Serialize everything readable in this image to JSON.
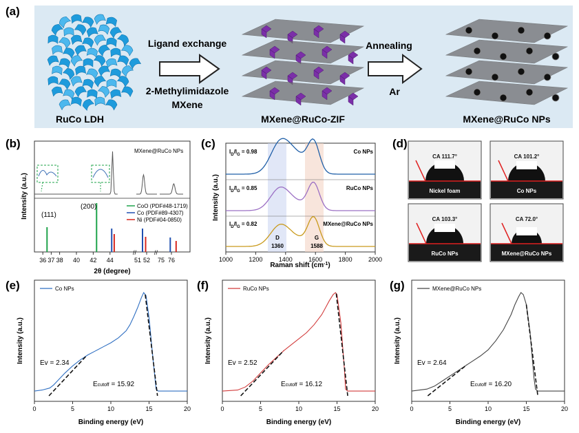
{
  "panel_a": {
    "label": "(a)",
    "left_caption": "RuCo LDH",
    "arrow1_top": "Ligand exchange",
    "arrow1_bottom_1": "2-Methylimidazole",
    "arrow1_bottom_2": "MXene",
    "mid_caption": "MXene@RuCo-ZIF",
    "arrow2_top": "Annealing",
    "arrow2_bottom": "Ar",
    "right_caption": "MXene@RuCo NPs",
    "colors": {
      "ldh": "#1e9bdc",
      "zif": "#7b2fa8",
      "sheet": "#6f6f72",
      "band": "#dbe9f3"
    }
  },
  "panel_b": {
    "label": "(b)",
    "ylabel": "Intensity (a.u.)",
    "xlabel": "2θ (degree)",
    "sample_label": "MXene@RuCo NPs",
    "peak_labels": [
      "(111)",
      "(200)"
    ],
    "legend": [
      {
        "name": "CoO (PDF#48-1719)",
        "color": "#1ea34a"
      },
      {
        "name": "Co   (PDF#89-4307)",
        "color": "#1f4fb0"
      },
      {
        "name": "Ni   (PDF#04-0850)",
        "color": "#d7261e"
      }
    ],
    "xticks": [
      "36",
      "37",
      "38",
      "40",
      "42",
      "44",
      "52",
      "76"
    ],
    "xticks2": [
      "51",
      "75"
    ]
  },
  "panel_c": {
    "label": "(c)",
    "ylabel": "Intensity (a.u.)",
    "xlabel": "Raman shift (cm",
    "xlabel_sup": "-1",
    "xlabel_close": ")",
    "xticks": [
      "1000",
      "1200",
      "1400",
      "1600",
      "1800",
      "2000"
    ],
    "series": [
      {
        "name": "Co NPs",
        "ratio": "0.98",
        "color": "#1f5fa8"
      },
      {
        "name": "RuCo NPs",
        "ratio": "0.85",
        "color": "#9b6fc4"
      },
      {
        "name": "MXene@RuCo NPs",
        "ratio": "0.82",
        "color": "#c99a1c"
      }
    ],
    "ratio_prefix": "I",
    "ratio_sub_d": "D",
    "ratio_mid": "/I",
    "ratio_sub_g": "G",
    "ratio_eq": " = ",
    "band_d": {
      "name": "D",
      "pos": "1360"
    },
    "band_g": {
      "name": "G",
      "pos": "1588"
    }
  },
  "panel_d": {
    "label": "(d)",
    "items": [
      {
        "name": "Nickel foam",
        "angle": "CA 111.7°"
      },
      {
        "name": "Co NPs",
        "angle": "CA 101.2°"
      },
      {
        "name": "RuCo NPs",
        "angle": "CA 103.3°"
      },
      {
        "name": "MXene@RuCo NPs",
        "angle": "CA 72.0°"
      }
    ]
  },
  "panel_e": {
    "label": "(e)",
    "legend": "Co NPs",
    "color": "#2f6fc2",
    "ev": "Ev = 2.34",
    "cutoff_prefix": "E",
    "cutoff_sub": "cutoff",
    "cutoff_val": " = 15.92"
  },
  "panel_f": {
    "label": "(f)",
    "legend": "RuCo NPs",
    "color": "#d23b3b",
    "ev": "Ev = 2.52",
    "cutoff_prefix": "E",
    "cutoff_sub": "cutoff",
    "cutoff_val": " = 16.12"
  },
  "panel_g": {
    "label": "(g)",
    "legend": "MXene@RuCo NPs",
    "color": "#444444",
    "ev": "Ev = 2.64",
    "cutoff_prefix": "E",
    "cutoff_sub": "cutoff",
    "cutoff_val": " = 16.20"
  },
  "ups_common": {
    "ylabel": "Intensity (a.u.)",
    "xlabel": "Binding energy (eV)",
    "xticks": [
      "0",
      "5",
      "10",
      "15",
      "20"
    ]
  },
  "chart_data": [
    {
      "type": "line",
      "panel": "e",
      "xlabel": "Binding energy (eV)",
      "ylabel": "Intensity (a.u.)",
      "xlim": [
        0,
        20
      ],
      "series": [
        {
          "name": "Co NPs",
          "x": [
            0,
            1,
            2,
            2.5,
            3,
            4,
            5,
            6,
            7,
            8,
            9,
            10,
            11,
            12,
            12.5,
            13,
            13.5,
            14,
            14.3,
            14.6,
            15,
            15.5,
            15.92,
            16.2,
            20
          ],
          "y": [
            0.02,
            0.03,
            0.05,
            0.08,
            0.12,
            0.2,
            0.27,
            0.33,
            0.38,
            0.42,
            0.46,
            0.5,
            0.55,
            0.62,
            0.68,
            0.76,
            0.85,
            0.95,
            1.0,
            0.97,
            0.75,
            0.35,
            0.04,
            0.02,
            0.02
          ]
        }
      ],
      "annotations": [
        "Ev = 2.34",
        "Ecutoff = 15.92"
      ]
    },
    {
      "type": "line",
      "panel": "f",
      "xlabel": "Binding energy (eV)",
      "ylabel": "Intensity (a.u.)",
      "xlim": [
        0,
        20
      ],
      "series": [
        {
          "name": "RuCo NPs",
          "x": [
            0,
            2,
            3,
            4,
            5,
            6,
            7,
            8,
            9,
            10,
            11,
            12,
            13,
            13.5,
            14,
            14.5,
            14.8,
            15,
            15.5,
            16,
            16.12,
            16.4,
            20
          ],
          "y": [
            0.02,
            0.03,
            0.06,
            0.12,
            0.2,
            0.28,
            0.35,
            0.42,
            0.48,
            0.54,
            0.6,
            0.68,
            0.78,
            0.85,
            0.92,
            0.98,
            1.0,
            0.98,
            0.7,
            0.2,
            0.04,
            0.02,
            0.02
          ]
        }
      ],
      "annotations": [
        "Ev = 2.52",
        "Ecutoff = 16.12"
      ]
    },
    {
      "type": "line",
      "panel": "g",
      "xlabel": "Binding energy (eV)",
      "ylabel": "Intensity (a.u.)",
      "xlim": [
        0,
        20
      ],
      "series": [
        {
          "name": "MXene@RuCo NPs",
          "x": [
            0,
            2,
            3,
            4,
            5,
            6,
            7,
            8,
            9,
            10,
            11,
            12,
            13,
            13.5,
            14,
            14.3,
            14.6,
            15,
            15.5,
            16,
            16.2,
            16.5,
            20
          ],
          "y": [
            0.02,
            0.04,
            0.07,
            0.12,
            0.17,
            0.22,
            0.27,
            0.32,
            0.37,
            0.43,
            0.52,
            0.63,
            0.78,
            0.88,
            0.96,
            1.0,
            0.98,
            0.88,
            0.6,
            0.15,
            0.04,
            0.02,
            0.02
          ]
        }
      ],
      "annotations": [
        "Ev = 2.64",
        "Ecutoff = 16.20"
      ]
    }
  ]
}
